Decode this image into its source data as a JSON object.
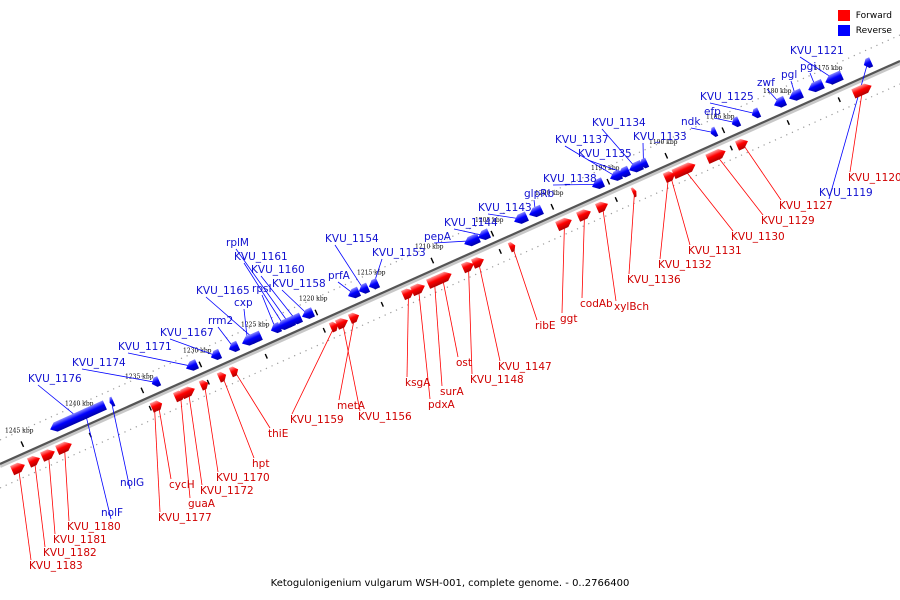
{
  "legend": {
    "forward_label": "Forward",
    "reverse_label": "Reverse",
    "forward_color": "#ff0000",
    "reverse_color": "#0000ff"
  },
  "caption": "Ketogulonigenium vulgarum WSH-001, complete genome. - 0..2766400",
  "ticks": [
    "1175 kbp",
    "1180 kbp",
    "1185 kbp",
    "1190 kbp",
    "1195 kbp",
    "1200 kbp",
    "1205 kbp",
    "1210 kbp",
    "1215 kbp",
    "1220 kbp",
    "1225 kbp",
    "1230 kbp",
    "1235 kbp",
    "1240 kbp",
    "1245 kbp"
  ],
  "genes": [
    {
      "label": "KVU_1121",
      "strand": "reverse"
    },
    {
      "label": "pgi",
      "strand": "reverse"
    },
    {
      "label": "pgl",
      "strand": "reverse"
    },
    {
      "label": "zwf",
      "strand": "reverse"
    },
    {
      "label": "KVU_1125",
      "strand": "reverse"
    },
    {
      "label": "efp",
      "strand": "reverse"
    },
    {
      "label": "ndk",
      "strand": "reverse"
    },
    {
      "label": "KVU_1134",
      "strand": "reverse"
    },
    {
      "label": "KVU_1133",
      "strand": "reverse"
    },
    {
      "label": "KVU_1137",
      "strand": "reverse"
    },
    {
      "label": "KVU_1135",
      "strand": "reverse"
    },
    {
      "label": "KVU_1138",
      "strand": "reverse"
    },
    {
      "label": "glpRb",
      "strand": "reverse"
    },
    {
      "label": "KVU_1143",
      "strand": "reverse"
    },
    {
      "label": "KVU_1144",
      "strand": "reverse"
    },
    {
      "label": "pepA",
      "strand": "reverse"
    },
    {
      "label": "KVU_1154",
      "strand": "reverse"
    },
    {
      "label": "KVU_1153",
      "strand": "reverse"
    },
    {
      "label": "prfA",
      "strand": "reverse"
    },
    {
      "label": "rplM",
      "strand": "reverse"
    },
    {
      "label": "KVU_1161",
      "strand": "reverse"
    },
    {
      "label": "KVU_1160",
      "strand": "reverse"
    },
    {
      "label": "rpsI",
      "strand": "reverse"
    },
    {
      "label": "KVU_1158",
      "strand": "reverse"
    },
    {
      "label": "KVU_1165",
      "strand": "reverse"
    },
    {
      "label": "cxp",
      "strand": "reverse"
    },
    {
      "label": "rrm2",
      "strand": "reverse"
    },
    {
      "label": "KVU_1167",
      "strand": "reverse"
    },
    {
      "label": "KVU_1171",
      "strand": "reverse"
    },
    {
      "label": "KVU_1174",
      "strand": "reverse"
    },
    {
      "label": "KVU_1176",
      "strand": "reverse"
    },
    {
      "label": "KVU_1119",
      "strand": "reverse"
    },
    {
      "label": "nolG",
      "strand": "reverse"
    },
    {
      "label": "nolF",
      "strand": "reverse"
    },
    {
      "label": "KVU_1120",
      "strand": "forward"
    },
    {
      "label": "KVU_1127",
      "strand": "forward"
    },
    {
      "label": "KVU_1129",
      "strand": "forward"
    },
    {
      "label": "KVU_1130",
      "strand": "forward"
    },
    {
      "label": "KVU_1131",
      "strand": "forward"
    },
    {
      "label": "KVU_1132",
      "strand": "forward"
    },
    {
      "label": "KVU_1136",
      "strand": "forward"
    },
    {
      "label": "xylBch",
      "strand": "forward"
    },
    {
      "label": "codAb",
      "strand": "forward"
    },
    {
      "label": "ggt",
      "strand": "forward"
    },
    {
      "label": "ribE",
      "strand": "forward"
    },
    {
      "label": "KVU_1147",
      "strand": "forward"
    },
    {
      "label": "KVU_1148",
      "strand": "forward"
    },
    {
      "label": "ost",
      "strand": "forward"
    },
    {
      "label": "surA",
      "strand": "forward"
    },
    {
      "label": "ksgA",
      "strand": "forward"
    },
    {
      "label": "pdxA",
      "strand": "forward"
    },
    {
      "label": "metA",
      "strand": "forward"
    },
    {
      "label": "KVU_1156",
      "strand": "forward"
    },
    {
      "label": "KVU_1159",
      "strand": "forward"
    },
    {
      "label": "thiE",
      "strand": "forward"
    },
    {
      "label": "hpt",
      "strand": "forward"
    },
    {
      "label": "KVU_1170",
      "strand": "forward"
    },
    {
      "label": "KVU_1172",
      "strand": "forward"
    },
    {
      "label": "guaA",
      "strand": "forward"
    },
    {
      "label": "cycH",
      "strand": "forward"
    },
    {
      "label": "KVU_1177",
      "strand": "forward"
    },
    {
      "label": "KVU_1180",
      "strand": "forward"
    },
    {
      "label": "KVU_1181",
      "strand": "forward"
    },
    {
      "label": "KVU_1182",
      "strand": "forward"
    },
    {
      "label": "KVU_1183",
      "strand": "forward"
    }
  ]
}
